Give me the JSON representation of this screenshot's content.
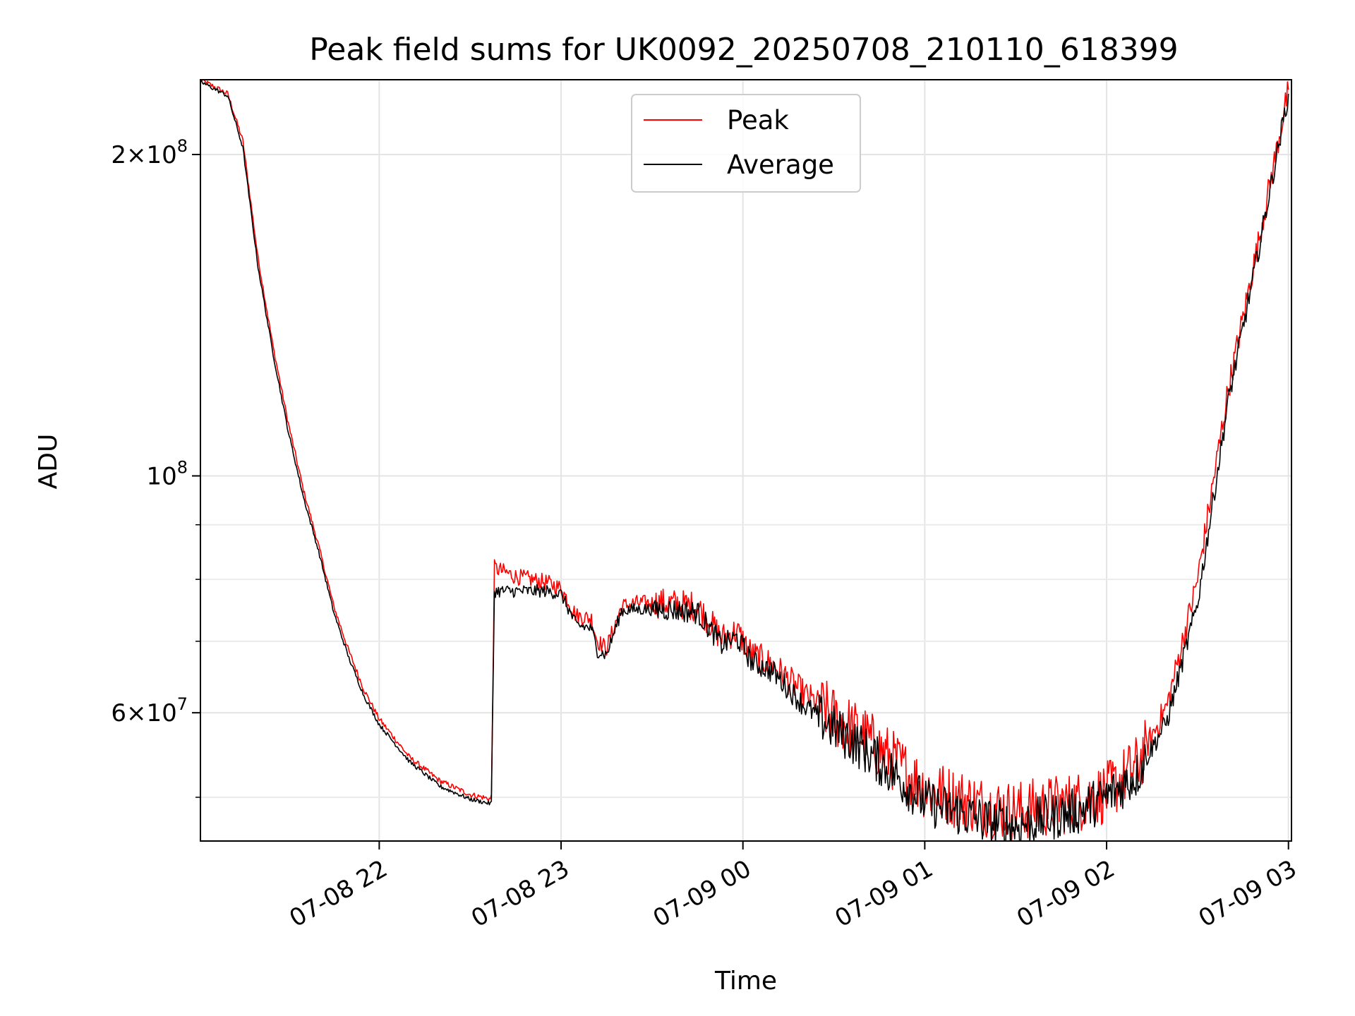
{
  "chart_data": {
    "type": "line",
    "title": "Peak field sums for UK0092_20250708_210110_618399",
    "xlabel": "Time",
    "ylabel": "ADU",
    "y_scale": "log",
    "xlim": [
      "2025-07-08 21:01:00",
      "2025-07-09 03:01:00"
    ],
    "ylim": [
      45500000,
      235000000
    ],
    "x_ticks": [
      "07-08 22",
      "07-08 23",
      "07-09 00",
      "07-09 01",
      "07-09 02",
      "07-09 03"
    ],
    "y_ticks_major": [
      "2×10^8",
      "10^8",
      "6×10^7"
    ],
    "y_ticks_minor": [
      50000000,
      70000000,
      80000000,
      90000000
    ],
    "grid": true,
    "legend_position": "upper center",
    "legend": [
      "Peak",
      "Average"
    ],
    "colors": {
      "Peak": "#ff0000",
      "Average": "#000000"
    },
    "series": [
      {
        "name": "Peak",
        "x": [
          "2025-07-08 21:01",
          "2025-07-08 21:10",
          "2025-07-08 21:15",
          "2025-07-08 21:20",
          "2025-07-08 21:25",
          "2025-07-08 21:30",
          "2025-07-08 21:35",
          "2025-07-08 21:40",
          "2025-07-08 21:45",
          "2025-07-08 21:50",
          "2025-07-08 21:55",
          "2025-07-08 22:00",
          "2025-07-08 22:10",
          "2025-07-08 22:20",
          "2025-07-08 22:30",
          "2025-07-08 22:37",
          "2025-07-08 22:38",
          "2025-07-08 22:45",
          "2025-07-08 22:55",
          "2025-07-08 23:00",
          "2025-07-08 23:05",
          "2025-07-08 23:10",
          "2025-07-08 23:12",
          "2025-07-08 23:15",
          "2025-07-08 23:20",
          "2025-07-08 23:25",
          "2025-07-08 23:35",
          "2025-07-08 23:45",
          "2025-07-08 23:53",
          "2025-07-08 23:58",
          "2025-07-09 00:03",
          "2025-07-09 00:10",
          "2025-07-09 00:20",
          "2025-07-09 00:30",
          "2025-07-09 00:40",
          "2025-07-09 00:50",
          "2025-07-09 01:00",
          "2025-07-09 01:10",
          "2025-07-09 01:20",
          "2025-07-09 01:30",
          "2025-07-09 01:40",
          "2025-07-09 01:50",
          "2025-07-09 02:00",
          "2025-07-09 02:10",
          "2025-07-09 02:20",
          "2025-07-09 02:30",
          "2025-07-09 02:40",
          "2025-07-09 02:50",
          "2025-07-09 03:00"
        ],
        "values": [
          235000000,
          228000000,
          206000000,
          160000000,
          132000000,
          112000000,
          97000000,
          86000000,
          75500000,
          68500000,
          63000000,
          59200000,
          54500000,
          51800000,
          50300000,
          49800000,
          82000000,
          80500000,
          79500000,
          78500000,
          74000000,
          73500000,
          70000000,
          69000000,
          75500000,
          76000000,
          76000000,
          75500000,
          70500000,
          71500000,
          68000000,
          66500000,
          62500000,
          59500000,
          57000000,
          54000000,
          51000000,
          50000000,
          49000000,
          48500000,
          49000000,
          49500000,
          50500000,
          53500000,
          61000000,
          80000000,
          120000000,
          165000000,
          230000000
        ]
      },
      {
        "name": "Average",
        "x": [
          "2025-07-08 21:01",
          "2025-07-08 21:10",
          "2025-07-08 21:15",
          "2025-07-08 21:20",
          "2025-07-08 21:25",
          "2025-07-08 21:30",
          "2025-07-08 21:35",
          "2025-07-08 21:40",
          "2025-07-08 21:45",
          "2025-07-08 21:50",
          "2025-07-08 21:55",
          "2025-07-08 22:00",
          "2025-07-08 22:10",
          "2025-07-08 22:20",
          "2025-07-08 22:30",
          "2025-07-08 22:37",
          "2025-07-08 22:38",
          "2025-07-08 22:45",
          "2025-07-08 22:55",
          "2025-07-08 23:00",
          "2025-07-08 23:05",
          "2025-07-08 23:10",
          "2025-07-08 23:12",
          "2025-07-08 23:15",
          "2025-07-08 23:20",
          "2025-07-08 23:25",
          "2025-07-08 23:35",
          "2025-07-08 23:45",
          "2025-07-08 23:53",
          "2025-07-08 23:58",
          "2025-07-09 00:03",
          "2025-07-09 00:10",
          "2025-07-09 00:20",
          "2025-07-09 00:30",
          "2025-07-09 00:40",
          "2025-07-09 00:50",
          "2025-07-09 01:00",
          "2025-07-09 01:10",
          "2025-07-09 01:20",
          "2025-07-09 01:30",
          "2025-07-09 01:40",
          "2025-07-09 01:50",
          "2025-07-09 02:00",
          "2025-07-09 02:10",
          "2025-07-09 02:20",
          "2025-07-09 02:30",
          "2025-07-09 02:40",
          "2025-07-09 02:50",
          "2025-07-09 03:00"
        ],
        "values": [
          234000000,
          227000000,
          203000000,
          157000000,
          130000000,
          110000000,
          95500000,
          85000000,
          74500000,
          67500000,
          62200000,
          58500000,
          54000000,
          51200000,
          49800000,
          49300000,
          78000000,
          78000000,
          78000000,
          77500000,
          72500000,
          72000000,
          68500000,
          68000000,
          74800000,
          75000000,
          75000000,
          74500000,
          69500000,
          70500000,
          67000000,
          65500000,
          61000000,
          58000000,
          55500000,
          52500000,
          49500000,
          48500000,
          47500000,
          47000000,
          47800000,
          48500000,
          50000000,
          52500000,
          59000000,
          76000000,
          117000000,
          162000000,
          228000000
        ]
      }
    ]
  }
}
